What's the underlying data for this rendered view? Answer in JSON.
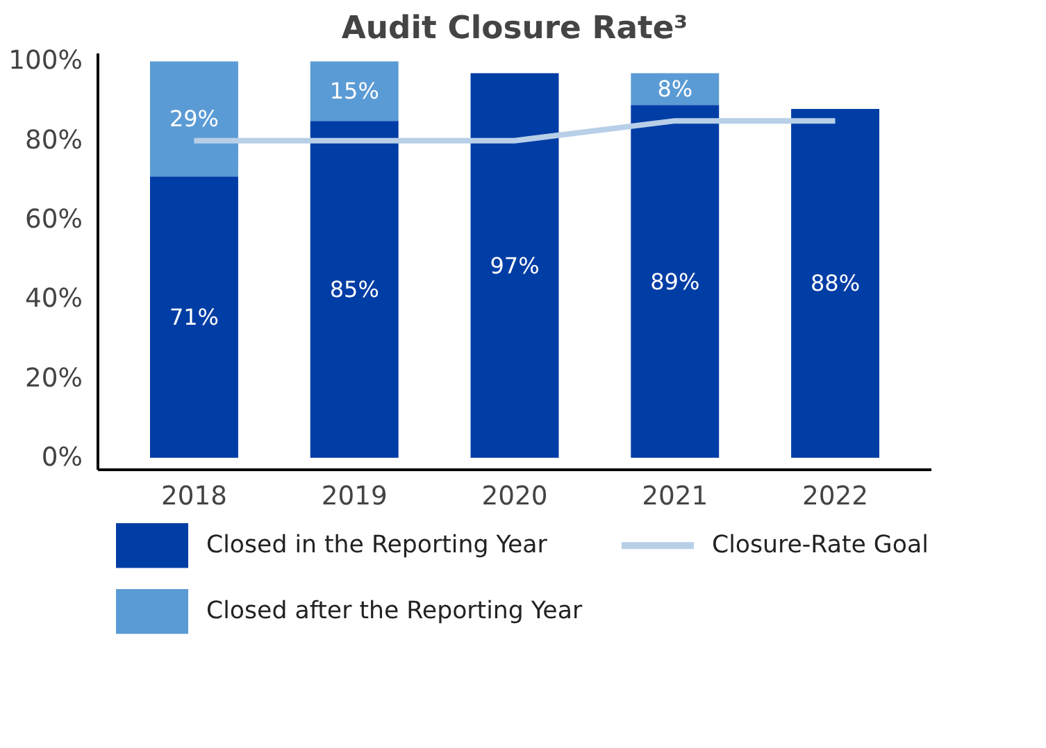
{
  "chart_data": {
    "type": "bar",
    "title": "Audit Closure Rate³",
    "categories": [
      "2018",
      "2019",
      "2020",
      "2021",
      "2022"
    ],
    "stacked": true,
    "series": [
      {
        "name": "Closed in the Reporting Year",
        "color": "#003da5",
        "values": [
          71,
          85,
          97,
          89,
          88
        ],
        "value_labels": [
          "71%",
          "85%",
          "97%",
          "89%",
          "88%"
        ]
      },
      {
        "name": "Closed after the Reporting Year",
        "color": "#5b9bd5",
        "values": [
          29,
          15,
          null,
          8,
          null
        ],
        "value_labels": [
          "29%",
          "15%",
          null,
          "8%",
          null
        ]
      },
      {
        "name": "Closure-Rate Goal",
        "type": "line",
        "color": "#b8cfe8",
        "values": [
          80,
          80,
          80,
          85,
          85
        ]
      }
    ],
    "ylim": [
      -3,
      102
    ],
    "yticks": [
      {
        "value": 0,
        "label": "0%"
      },
      {
        "value": 20,
        "label": "20%"
      },
      {
        "value": 40,
        "label": "40%"
      },
      {
        "value": 60,
        "label": "60%"
      },
      {
        "value": 80,
        "label": "80%"
      },
      {
        "value": 100,
        "label": "100%"
      }
    ],
    "grid": false,
    "legend": "bottom"
  }
}
